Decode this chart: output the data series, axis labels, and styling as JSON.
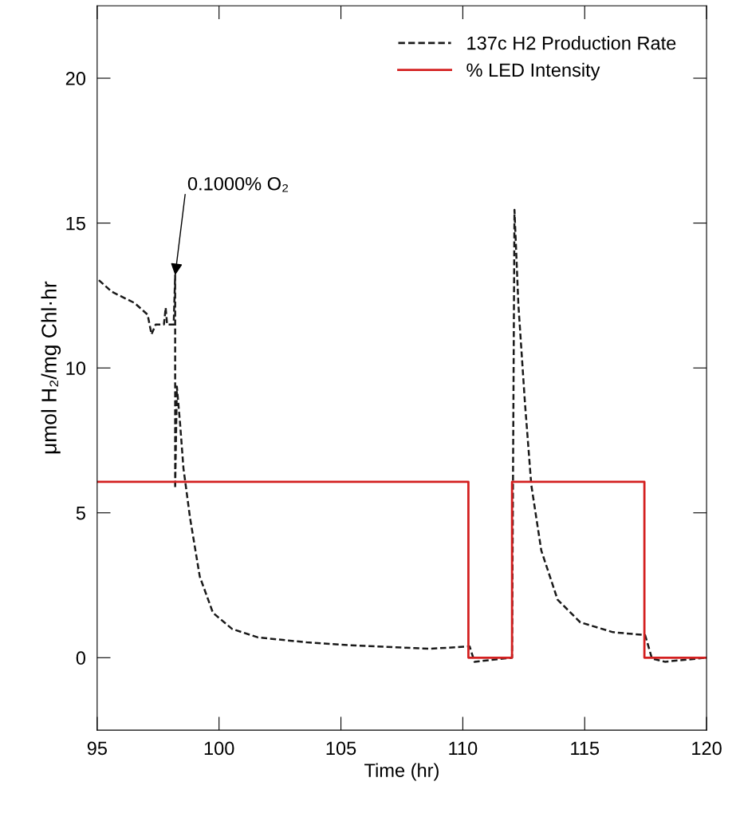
{
  "chart_data": {
    "type": "line",
    "xlabel": "Time (hr)",
    "ylabel": "μmol H₂/mg Chl·hr",
    "xlim": [
      95,
      120
    ],
    "ylim": [
      -2.5,
      22.5
    ],
    "xticks": [
      95,
      100,
      105,
      110,
      115,
      120
    ],
    "yticks": [
      0,
      5,
      10,
      15,
      20
    ],
    "grid": false,
    "legend": "top right",
    "marker": "none",
    "series": [
      {
        "name": "137c H2 Production Rate",
        "color": "#1a1a1a",
        "line_style": "dashed",
        "x": [
          95.07,
          95.6,
          96.54,
          97.07,
          97.23,
          97.4,
          97.74,
          97.81,
          97.87,
          98.14,
          98.2,
          98.2,
          98.27,
          98.4,
          98.54,
          98.81,
          99.21,
          99.75,
          100.54,
          101.6,
          103.6,
          105.6,
          108.0,
          108.68,
          110.28,
          110.48,
          112.02,
          112.12,
          112.28,
          112.55,
          112.81,
          113.22,
          113.89,
          114.82,
          116.16,
          117.48,
          117.76,
          118.29,
          120
        ],
        "values": [
          13.03,
          12.63,
          12.24,
          11.84,
          11.16,
          11.5,
          11.5,
          12.08,
          11.5,
          11.5,
          13.2,
          5.84,
          9.36,
          8.1,
          6.54,
          4.83,
          2.8,
          1.55,
          0.99,
          0.7,
          0.53,
          0.42,
          0.33,
          0.31,
          0.39,
          -0.14,
          0.0,
          15.46,
          12.19,
          8.79,
          5.96,
          3.7,
          2.0,
          1.22,
          0.88,
          0.78,
          -0.03,
          -0.14,
          0.0
        ]
      },
      {
        "name": "% LED Intensity",
        "color": "#d42020",
        "line_style": "solid",
        "x": [
          95,
          110.23,
          110.23,
          112.02,
          112.02,
          117.45,
          117.45,
          120
        ],
        "values": [
          6.07,
          6.07,
          0.0,
          0.0,
          6.07,
          6.07,
          0.0,
          0.0
        ]
      }
    ],
    "annotations": [
      {
        "text": "0.1000% O₂",
        "x": 98.2,
        "y": 13.2
      }
    ]
  }
}
